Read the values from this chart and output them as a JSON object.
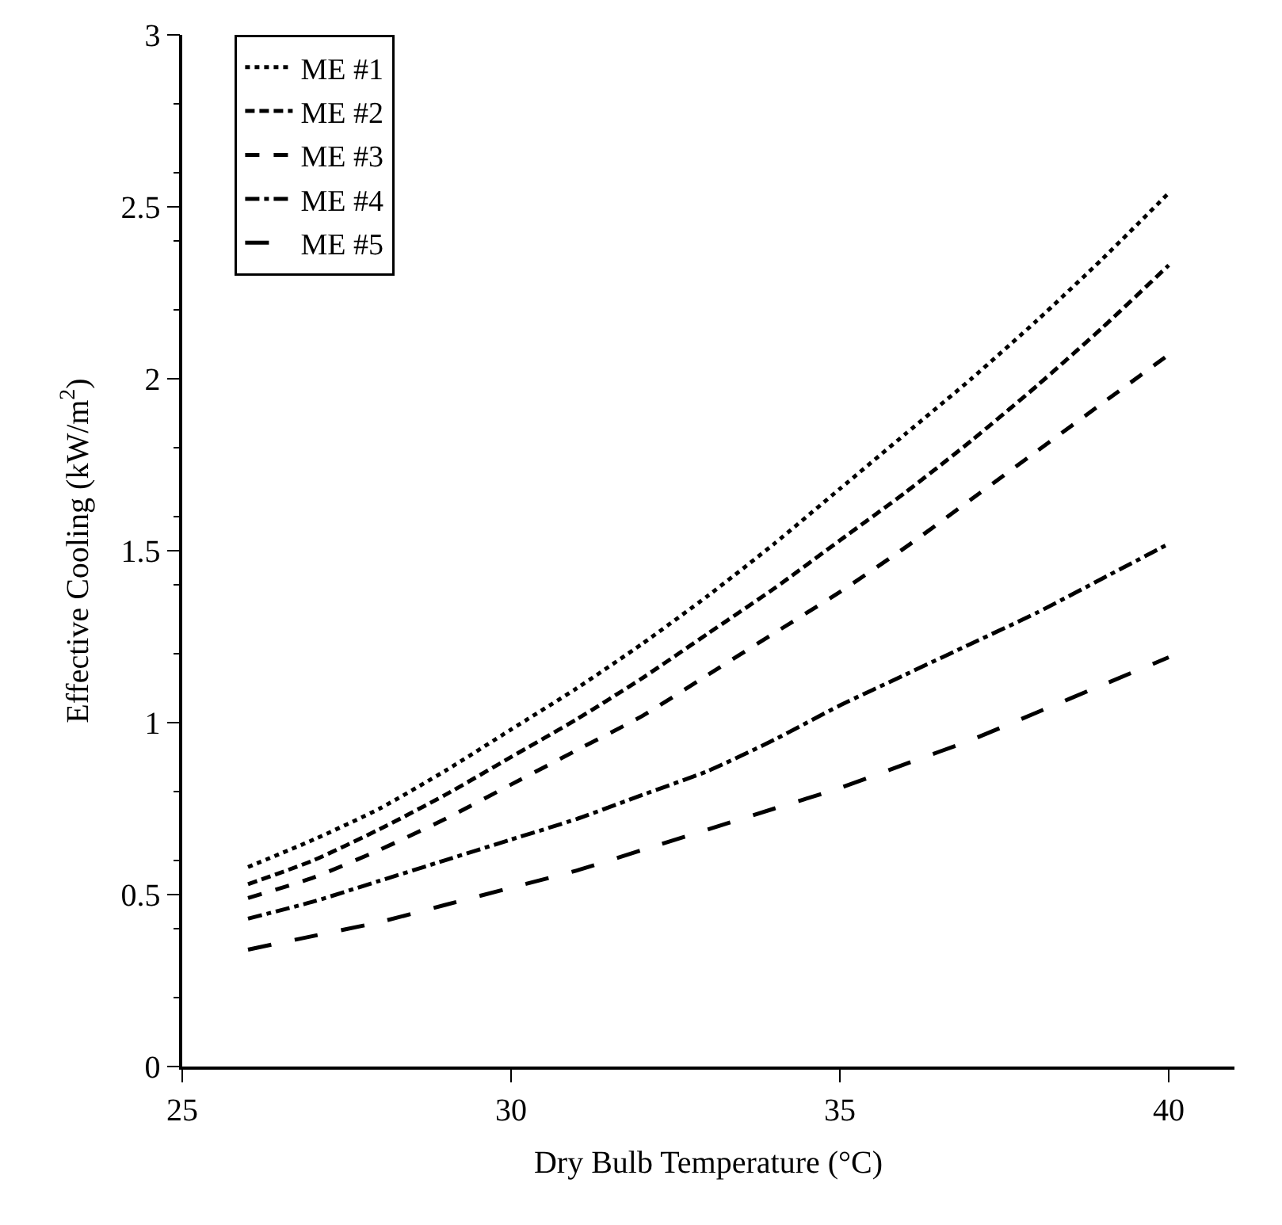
{
  "chart_data": {
    "type": "line",
    "xlabel": "Dry Bulb Temperature (°C)",
    "ylabel": "Effective Cooling (kW/m$^{2}$)",
    "x": [
      26,
      27,
      28,
      29,
      30,
      31,
      32,
      33,
      34,
      35,
      36,
      37,
      38,
      39,
      40
    ],
    "series": [
      {
        "name": "ME #1",
        "color": "#000000",
        "line_style": "dotted",
        "values": [
          0.58,
          0.66,
          0.75,
          0.86,
          0.98,
          1.1,
          1.23,
          1.37,
          1.52,
          1.68,
          1.84,
          2.0,
          2.17,
          2.35,
          2.54
        ]
      },
      {
        "name": "ME #2",
        "color": "#000000",
        "line_style": "short dashed",
        "values": [
          0.53,
          0.6,
          0.69,
          0.79,
          0.9,
          1.01,
          1.13,
          1.26,
          1.39,
          1.53,
          1.67,
          1.82,
          1.98,
          2.15,
          2.33
        ]
      },
      {
        "name": "ME #3",
        "color": "#000000",
        "line_style": "dashed",
        "values": [
          0.49,
          0.55,
          0.63,
          0.72,
          0.82,
          0.92,
          1.02,
          1.14,
          1.26,
          1.38,
          1.51,
          1.65,
          1.79,
          1.93,
          2.07
        ]
      },
      {
        "name": "ME #4",
        "color": "#000000",
        "line_style": "dash-dot",
        "values": [
          0.43,
          0.48,
          0.54,
          0.6,
          0.66,
          0.72,
          0.79,
          0.86,
          0.95,
          1.05,
          1.14,
          1.23,
          1.32,
          1.42,
          1.52
        ]
      },
      {
        "name": "ME #5",
        "color": "#000000",
        "line_style": "long dashed",
        "values": [
          0.34,
          0.38,
          0.42,
          0.47,
          0.52,
          0.57,
          0.63,
          0.69,
          0.75,
          0.81,
          0.88,
          0.95,
          1.03,
          1.11,
          1.19
        ]
      }
    ],
    "xlim": [
      25,
      41
    ],
    "xticks": [
      25,
      30,
      35,
      40
    ],
    "ylim": [
      0,
      3
    ],
    "yticks": [
      0,
      0.5,
      1,
      1.5,
      2,
      2.5,
      3
    ],
    "legend": "top left",
    "marker": "none"
  }
}
